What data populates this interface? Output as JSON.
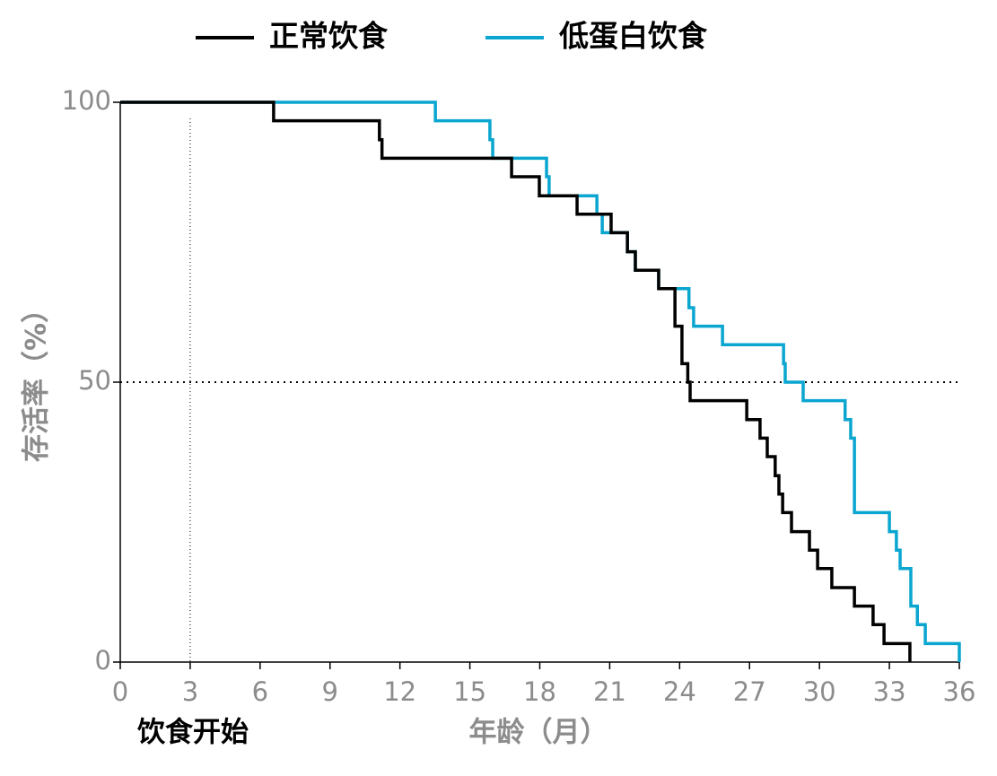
{
  "chart_data": {
    "type": "step",
    "xlabel": "年龄（月）",
    "ylabel": "存活率（%）",
    "xlim": [
      0,
      36
    ],
    "ylim": [
      0,
      100
    ],
    "xticks": [
      0,
      3,
      6,
      9,
      12,
      15,
      18,
      21,
      24,
      27,
      30,
      33,
      36
    ],
    "yticks": [
      0,
      50,
      100
    ],
    "hline": 50,
    "vline": {
      "x": 3,
      "label": "饮食开始"
    },
    "legend": "top",
    "series": [
      {
        "name": "正常饮食",
        "color": "#000000",
        "x": [
          0,
          6.58,
          11.12,
          11.23,
          16.79,
          17.98,
          19.6,
          21.06,
          21.76,
          22.1,
          23.1,
          23.8,
          24.1,
          24.35,
          24.45,
          26.88,
          27.45,
          27.76,
          28.1,
          28.26,
          28.42,
          28.8,
          29.57,
          29.92,
          30.53,
          31.5,
          32.3,
          32.77,
          33.88
        ],
        "values": [
          100,
          96.7,
          93.3,
          90,
          86.7,
          83.3,
          80,
          76.7,
          73.3,
          70,
          66.7,
          60,
          53.3,
          50,
          46.7,
          43.3,
          40,
          36.7,
          33.3,
          30,
          26.7,
          23.3,
          20,
          16.7,
          13.3,
          10,
          6.7,
          3.3,
          0
        ]
      },
      {
        "name": "低蛋白饮食",
        "color": "#0aa6d0",
        "x": [
          0,
          13.52,
          15.86,
          15.98,
          18.29,
          18.4,
          20.45,
          20.68,
          21.76,
          22.1,
          23.1,
          24.4,
          24.6,
          25.84,
          28.46,
          28.53,
          29.3,
          31.1,
          31.34,
          31.5,
          33.0,
          33.3,
          33.46,
          33.92,
          34.2,
          34.54,
          36
        ],
        "values": [
          100,
          96.7,
          93.3,
          90,
          86.7,
          83.3,
          80,
          76.7,
          73.3,
          70,
          66.7,
          63.3,
          60,
          56.7,
          53.3,
          50,
          46.7,
          43.3,
          40,
          26.7,
          23.3,
          20,
          16.7,
          10,
          6.7,
          3.3,
          0
        ]
      }
    ]
  }
}
